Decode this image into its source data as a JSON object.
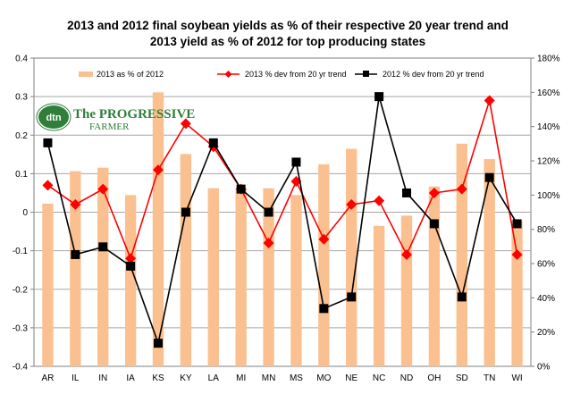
{
  "chart_data": {
    "type": "bar",
    "title": "2013 and 2012 final soybean yields as % of their respective 20 year trend and",
    "subtitle": "2013 yield as %  of 2012 for top producing states",
    "categories": [
      "AR",
      "IL",
      "IN",
      "IA",
      "KS",
      "KY",
      "LA",
      "MI",
      "MN",
      "MS",
      "MO",
      "NE",
      "NC",
      "ND",
      "OH",
      "SD",
      "TN",
      "WI"
    ],
    "series": [
      {
        "name": "2013 as % of 2012",
        "kind": "bar",
        "axis": "right",
        "color": "#fac090",
        "values": [
          95,
          114,
          116,
          100,
          160,
          124,
          104,
          104,
          104,
          100,
          118,
          127,
          82,
          88,
          105,
          130,
          121,
          85
        ]
      },
      {
        "name": "2013  % dev from 20 yr trend",
        "kind": "line",
        "axis": "left",
        "color": "#ff0000",
        "marker": "diamond",
        "values": [
          0.07,
          0.02,
          0.06,
          -0.12,
          0.11,
          0.23,
          0.17,
          0.06,
          -0.08,
          0.08,
          -0.07,
          0.02,
          0.03,
          -0.11,
          0.05,
          0.06,
          0.29,
          -0.11
        ]
      },
      {
        "name": "2012  % dev from 20 yr trend",
        "kind": "line",
        "axis": "left",
        "color": "#000000",
        "marker": "square",
        "values": [
          0.18,
          -0.11,
          -0.09,
          -0.14,
          -0.34,
          0.0,
          0.18,
          0.06,
          0.0,
          0.13,
          -0.25,
          -0.22,
          0.3,
          0.05,
          -0.03,
          -0.22,
          0.09,
          -0.03
        ]
      }
    ],
    "y_left": {
      "min": -0.4,
      "max": 0.4,
      "step": 0.1,
      "ticks": [
        "-0.4",
        "-0.3",
        "-0.2",
        "-0.1",
        "0",
        "0.1",
        "0.2",
        "0.3",
        "0.4"
      ]
    },
    "y_right": {
      "min": 0,
      "max": 180,
      "step": 20,
      "ticks": [
        "0%",
        "20%",
        "40%",
        "60%",
        "80%",
        "100%",
        "120%",
        "140%",
        "160%",
        "180%"
      ]
    },
    "grid": true,
    "legend": "top"
  },
  "logo": {
    "dtn": "dtn",
    "line1": "The PROGRESSIVE",
    "line2": "FARMER"
  }
}
